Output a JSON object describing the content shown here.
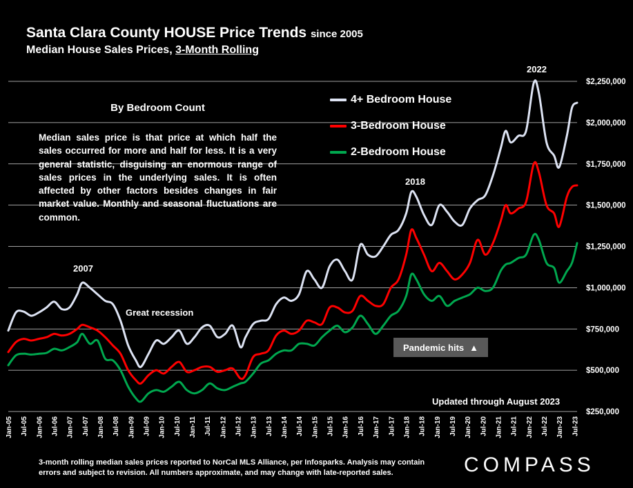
{
  "title": {
    "main": "Santa Clara County HOUSE Price Trends",
    "since": "since 2005",
    "subtitle_prefix": "Median House Sales Prices,",
    "subtitle_underlined": "3-Month Rolling"
  },
  "textbox": {
    "heading": "By Bedroom Count",
    "body": "Median sales price is that price at which half the sales occurred for more and half for less. It is a very general statistic, disguising an enormous range of sales prices in the underlying sales. It is often affected by other factors besides changes in fair market value. Monthly and seasonal fluctuations are common."
  },
  "annotations": {
    "y2007": "2007",
    "great_recession": "Great recession",
    "y2018": "2018",
    "y2022": "2022",
    "pandemic": "Pandemic hits",
    "pandemic_icon": "up-triangle",
    "updated": "Updated through August 2023"
  },
  "footnote": "3-month rolling median sales prices reported to NorCal MLS Alliance, per Infosparks.  Analysis may contain errors and subject to revision. All numbers approximate, and may change with late-reported sales.",
  "logo": "COMPASS",
  "colors": {
    "background": "#000000",
    "four_bed": "#dde3f3",
    "three_bed": "#ff0000",
    "two_bed": "#00a84f",
    "gridline": "#ffffff"
  },
  "chart_data": {
    "type": "line",
    "ylim": [
      250000,
      2250000
    ],
    "yticks": [
      250000,
      500000,
      750000,
      1000000,
      1250000,
      1500000,
      1750000,
      2000000,
      2250000
    ],
    "ytick_labels": [
      "$250,000",
      "$500,000",
      "$750,000",
      "$1,000,000",
      "$1,250,000",
      "$1,500,000",
      "$1,750,000",
      "$2,000,000",
      "$2,250,000"
    ],
    "x_start": "Jan-05",
    "x_end": "Aug-23",
    "xtick_labels": [
      "Jan-05",
      "Jul-05",
      "Jan-06",
      "Jul-06",
      "Jan-07",
      "Jul-07",
      "Jan-08",
      "Jul-08",
      "Jan-09",
      "Jul-09",
      "Jan-10",
      "Jul-10",
      "Jan-11",
      "Jul-11",
      "Jan-12",
      "Jul-12",
      "Jan-13",
      "Jul-13",
      "Jan-14",
      "Jul-14",
      "Jan-15",
      "Jul-15",
      "Jan-16",
      "Jul-16",
      "Jan-17",
      "Jul-17",
      "Jan-18",
      "Jul-18",
      "Jan-19",
      "Jul-19",
      "Jan-20",
      "Jul-20",
      "Jan-21",
      "Jul-21",
      "Jan-22",
      "Jul-22",
      "Jan-23",
      "Jul-23"
    ],
    "grid": true,
    "legend_position": "top-center",
    "series": [
      {
        "name": "4+ Bedroom House",
        "color": "#dde3f3",
        "points": [
          [
            "Jan-05",
            740000
          ],
          [
            "Apr-05",
            850000
          ],
          [
            "Jul-05",
            855000
          ],
          [
            "Oct-05",
            830000
          ],
          [
            "Jan-06",
            850000
          ],
          [
            "Apr-06",
            880000
          ],
          [
            "Jul-06",
            915000
          ],
          [
            "Oct-06",
            870000
          ],
          [
            "Jan-07",
            880000
          ],
          [
            "Apr-07",
            960000
          ],
          [
            "Jun-07",
            1030000
          ],
          [
            "Sep-07",
            1000000
          ],
          [
            "Dec-07",
            960000
          ],
          [
            "Mar-08",
            920000
          ],
          [
            "Jun-08",
            900000
          ],
          [
            "Sep-08",
            800000
          ],
          [
            "Dec-08",
            650000
          ],
          [
            "Mar-09",
            560000
          ],
          [
            "May-09",
            520000
          ],
          [
            "Aug-09",
            600000
          ],
          [
            "Nov-09",
            680000
          ],
          [
            "Feb-10",
            660000
          ],
          [
            "May-10",
            700000
          ],
          [
            "Aug-10",
            740000
          ],
          [
            "Nov-10",
            660000
          ],
          [
            "Feb-11",
            700000
          ],
          [
            "May-11",
            760000
          ],
          [
            "Aug-11",
            770000
          ],
          [
            "Nov-11",
            700000
          ],
          [
            "Feb-12",
            720000
          ],
          [
            "May-12",
            770000
          ],
          [
            "Aug-12",
            640000
          ],
          [
            "Oct-12",
            700000
          ],
          [
            "Jan-13",
            780000
          ],
          [
            "Apr-13",
            800000
          ],
          [
            "Jul-13",
            810000
          ],
          [
            "Oct-13",
            900000
          ],
          [
            "Jan-14",
            940000
          ],
          [
            "Apr-14",
            920000
          ],
          [
            "Jul-14",
            960000
          ],
          [
            "Oct-14",
            1100000
          ],
          [
            "Jan-15",
            1050000
          ],
          [
            "Apr-15",
            1000000
          ],
          [
            "Jul-15",
            1130000
          ],
          [
            "Oct-15",
            1170000
          ],
          [
            "Jan-16",
            1100000
          ],
          [
            "Apr-16",
            1050000
          ],
          [
            "Jul-16",
            1260000
          ],
          [
            "Oct-16",
            1200000
          ],
          [
            "Jan-17",
            1190000
          ],
          [
            "Apr-17",
            1250000
          ],
          [
            "Jul-17",
            1320000
          ],
          [
            "Oct-17",
            1350000
          ],
          [
            "Jan-18",
            1450000
          ],
          [
            "Mar-18",
            1580000
          ],
          [
            "May-18",
            1550000
          ],
          [
            "Aug-18",
            1440000
          ],
          [
            "Nov-18",
            1380000
          ],
          [
            "Feb-19",
            1500000
          ],
          [
            "May-19",
            1460000
          ],
          [
            "Aug-19",
            1400000
          ],
          [
            "Nov-19",
            1380000
          ],
          [
            "Feb-20",
            1480000
          ],
          [
            "May-20",
            1530000
          ],
          [
            "Aug-20",
            1560000
          ],
          [
            "Nov-20",
            1680000
          ],
          [
            "Feb-21",
            1840000
          ],
          [
            "Apr-21",
            1950000
          ],
          [
            "Jun-21",
            1880000
          ],
          [
            "Sep-21",
            1920000
          ],
          [
            "Dec-21",
            1950000
          ],
          [
            "Mar-22",
            2240000
          ],
          [
            "May-22",
            2180000
          ],
          [
            "Aug-22",
            1880000
          ],
          [
            "Nov-22",
            1800000
          ],
          [
            "Jan-23",
            1730000
          ],
          [
            "Apr-23",
            1920000
          ],
          [
            "Jun-23",
            2090000
          ],
          [
            "Aug-23",
            2120000
          ]
        ]
      },
      {
        "name": "3-Bedroom House",
        "color": "#ff0000",
        "points": [
          [
            "Jan-05",
            610000
          ],
          [
            "Apr-05",
            670000
          ],
          [
            "Jul-05",
            690000
          ],
          [
            "Oct-05",
            680000
          ],
          [
            "Jan-06",
            690000
          ],
          [
            "Apr-06",
            700000
          ],
          [
            "Jul-06",
            720000
          ],
          [
            "Oct-06",
            710000
          ],
          [
            "Jan-07",
            720000
          ],
          [
            "Apr-07",
            750000
          ],
          [
            "Jun-07",
            775000
          ],
          [
            "Sep-07",
            760000
          ],
          [
            "Dec-07",
            740000
          ],
          [
            "Mar-08",
            700000
          ],
          [
            "Jun-08",
            650000
          ],
          [
            "Sep-08",
            600000
          ],
          [
            "Dec-08",
            500000
          ],
          [
            "Mar-09",
            440000
          ],
          [
            "May-09",
            420000
          ],
          [
            "Aug-09",
            470000
          ],
          [
            "Nov-09",
            500000
          ],
          [
            "Feb-10",
            480000
          ],
          [
            "May-10",
            520000
          ],
          [
            "Aug-10",
            550000
          ],
          [
            "Nov-10",
            490000
          ],
          [
            "Feb-11",
            500000
          ],
          [
            "May-11",
            520000
          ],
          [
            "Aug-11",
            520000
          ],
          [
            "Nov-11",
            490000
          ],
          [
            "Feb-12",
            500000
          ],
          [
            "May-12",
            510000
          ],
          [
            "Aug-12",
            450000
          ],
          [
            "Oct-12",
            470000
          ],
          [
            "Jan-13",
            580000
          ],
          [
            "Apr-13",
            600000
          ],
          [
            "Jul-13",
            620000
          ],
          [
            "Oct-13",
            710000
          ],
          [
            "Jan-14",
            740000
          ],
          [
            "Apr-14",
            720000
          ],
          [
            "Jul-14",
            740000
          ],
          [
            "Oct-14",
            800000
          ],
          [
            "Jan-15",
            790000
          ],
          [
            "Apr-15",
            780000
          ],
          [
            "Jul-15",
            880000
          ],
          [
            "Oct-15",
            880000
          ],
          [
            "Jan-16",
            850000
          ],
          [
            "Apr-16",
            860000
          ],
          [
            "Jul-16",
            950000
          ],
          [
            "Oct-16",
            920000
          ],
          [
            "Jan-17",
            890000
          ],
          [
            "Apr-17",
            900000
          ],
          [
            "Jul-17",
            1000000
          ],
          [
            "Oct-17",
            1050000
          ],
          [
            "Jan-18",
            1200000
          ],
          [
            "Mar-18",
            1350000
          ],
          [
            "May-18",
            1300000
          ],
          [
            "Aug-18",
            1200000
          ],
          [
            "Nov-18",
            1100000
          ],
          [
            "Feb-19",
            1150000
          ],
          [
            "May-19",
            1100000
          ],
          [
            "Aug-19",
            1050000
          ],
          [
            "Nov-19",
            1080000
          ],
          [
            "Feb-20",
            1150000
          ],
          [
            "May-20",
            1290000
          ],
          [
            "Aug-20",
            1200000
          ],
          [
            "Nov-20",
            1270000
          ],
          [
            "Feb-21",
            1400000
          ],
          [
            "Apr-21",
            1500000
          ],
          [
            "Jun-21",
            1450000
          ],
          [
            "Sep-21",
            1480000
          ],
          [
            "Dec-21",
            1520000
          ],
          [
            "Mar-22",
            1750000
          ],
          [
            "May-22",
            1700000
          ],
          [
            "Aug-22",
            1500000
          ],
          [
            "Nov-22",
            1450000
          ],
          [
            "Jan-23",
            1370000
          ],
          [
            "Apr-23",
            1550000
          ],
          [
            "Jun-23",
            1610000
          ],
          [
            "Aug-23",
            1620000
          ]
        ]
      },
      {
        "name": "2-Bedroom House",
        "color": "#00a84f",
        "points": [
          [
            "Jan-05",
            530000
          ],
          [
            "Apr-05",
            590000
          ],
          [
            "Jul-05",
            600000
          ],
          [
            "Oct-05",
            595000
          ],
          [
            "Jan-06",
            600000
          ],
          [
            "Apr-06",
            605000
          ],
          [
            "Jul-06",
            630000
          ],
          [
            "Oct-06",
            620000
          ],
          [
            "Jan-07",
            640000
          ],
          [
            "Apr-07",
            670000
          ],
          [
            "Jun-07",
            720000
          ],
          [
            "Sep-07",
            660000
          ],
          [
            "Dec-07",
            680000
          ],
          [
            "Mar-08",
            570000
          ],
          [
            "Jun-08",
            560000
          ],
          [
            "Sep-08",
            500000
          ],
          [
            "Dec-08",
            400000
          ],
          [
            "Mar-09",
            330000
          ],
          [
            "May-09",
            310000
          ],
          [
            "Aug-09",
            360000
          ],
          [
            "Nov-09",
            380000
          ],
          [
            "Feb-10",
            370000
          ],
          [
            "May-10",
            400000
          ],
          [
            "Aug-10",
            430000
          ],
          [
            "Nov-10",
            380000
          ],
          [
            "Feb-11",
            360000
          ],
          [
            "May-11",
            380000
          ],
          [
            "Aug-11",
            420000
          ],
          [
            "Nov-11",
            390000
          ],
          [
            "Feb-12",
            380000
          ],
          [
            "May-12",
            400000
          ],
          [
            "Aug-12",
            420000
          ],
          [
            "Oct-12",
            430000
          ],
          [
            "Jan-13",
            480000
          ],
          [
            "Apr-13",
            540000
          ],
          [
            "Jul-13",
            560000
          ],
          [
            "Oct-13",
            600000
          ],
          [
            "Jan-14",
            620000
          ],
          [
            "Apr-14",
            620000
          ],
          [
            "Jul-14",
            660000
          ],
          [
            "Oct-14",
            660000
          ],
          [
            "Jan-15",
            650000
          ],
          [
            "Apr-15",
            700000
          ],
          [
            "Jul-15",
            740000
          ],
          [
            "Oct-15",
            770000
          ],
          [
            "Jan-16",
            730000
          ],
          [
            "Apr-16",
            760000
          ],
          [
            "Jul-16",
            830000
          ],
          [
            "Oct-16",
            780000
          ],
          [
            "Jan-17",
            720000
          ],
          [
            "Apr-17",
            770000
          ],
          [
            "Jul-17",
            830000
          ],
          [
            "Oct-17",
            860000
          ],
          [
            "Jan-18",
            950000
          ],
          [
            "Mar-18",
            1080000
          ],
          [
            "May-18",
            1050000
          ],
          [
            "Aug-18",
            960000
          ],
          [
            "Nov-18",
            920000
          ],
          [
            "Feb-19",
            950000
          ],
          [
            "May-19",
            890000
          ],
          [
            "Aug-19",
            920000
          ],
          [
            "Nov-19",
            940000
          ],
          [
            "Feb-20",
            960000
          ],
          [
            "May-20",
            1000000
          ],
          [
            "Aug-20",
            980000
          ],
          [
            "Nov-20",
            1000000
          ],
          [
            "Feb-21",
            1100000
          ],
          [
            "Apr-21",
            1140000
          ],
          [
            "Jun-21",
            1150000
          ],
          [
            "Sep-21",
            1180000
          ],
          [
            "Dec-21",
            1200000
          ],
          [
            "Mar-22",
            1320000
          ],
          [
            "May-22",
            1290000
          ],
          [
            "Aug-22",
            1150000
          ],
          [
            "Nov-22",
            1120000
          ],
          [
            "Jan-23",
            1030000
          ],
          [
            "Apr-23",
            1100000
          ],
          [
            "Jun-23",
            1150000
          ],
          [
            "Aug-23",
            1270000
          ]
        ]
      }
    ]
  }
}
